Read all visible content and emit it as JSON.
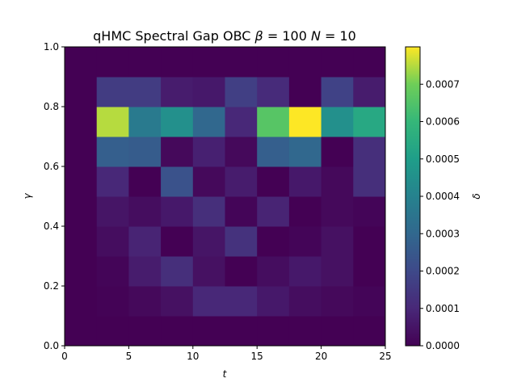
{
  "chart_data": {
    "type": "heatmap",
    "title": "qHMC Spectral Gap  OBC β =  100 N = 10",
    "title_parts": {
      "main": "qHMC Spectral Gap  OBC ",
      "beta_sym": "β",
      "beta_eq": " =  100 ",
      "n_sym": "N",
      "n_eq": " = 10"
    },
    "xlabel": "t",
    "ylabel": "γ",
    "colorbar_label": "δ",
    "xlim": [
      0,
      25
    ],
    "ylim": [
      0,
      1
    ],
    "x_ticks": [
      0,
      5,
      10,
      15,
      20,
      25
    ],
    "y_ticks": [
      0.0,
      0.2,
      0.4,
      0.6,
      0.8,
      1.0
    ],
    "x_tick_labels": [
      "0",
      "5",
      "10",
      "15",
      "20",
      "25"
    ],
    "y_tick_labels": [
      "0.0",
      "0.2",
      "0.4",
      "0.6",
      "0.8",
      "1.0"
    ],
    "clim": [
      0,
      0.0008
    ],
    "colorbar_ticks": [
      0.0,
      0.0001,
      0.0002,
      0.0003,
      0.0004,
      0.0005,
      0.0006,
      0.0007
    ],
    "colorbar_tick_labels": [
      "0.0000",
      "0.0001",
      "0.0002",
      "0.0003",
      "0.0004",
      "0.0005",
      "0.0006",
      "0.0007"
    ],
    "colormap": "viridis",
    "x_edges": [
      0,
      2.5,
      5,
      7.5,
      10,
      12.5,
      15,
      17.5,
      20,
      22.5,
      25
    ],
    "y_edges": [
      0,
      0.1,
      0.2,
      0.3,
      0.4,
      0.5,
      0.6,
      0.7,
      0.8,
      0.9,
      1.0
    ],
    "rows_bottom_to_top": [
      [
        0,
        0,
        0,
        0,
        0,
        0,
        0,
        0,
        0,
        0
      ],
      [
        0,
        5e-06,
        2e-05,
        4e-05,
        0.0001,
        0.0001,
        6e-05,
        3e-05,
        2e-05,
        1e-05
      ],
      [
        0,
        1e-05,
        7e-05,
        0.00012,
        4e-05,
        0.0,
        3e-05,
        6e-05,
        4e-05,
        0.0
      ],
      [
        0,
        3e-05,
        9e-05,
        0.0,
        5e-05,
        0.00013,
        0.0,
        1e-05,
        4e-05,
        0.0
      ],
      [
        0,
        5e-05,
        3e-05,
        6e-05,
        0.00012,
        1e-05,
        9e-05,
        0.0,
        2e-05,
        1e-05
      ],
      [
        0,
        0.0001,
        0.0,
        0.00023,
        2e-05,
        7e-05,
        0.0,
        6e-05,
        2e-05,
        0.00012
      ],
      [
        0,
        0.00027,
        0.00026,
        2e-05,
        8e-05,
        2e-05,
        0.00027,
        0.0003,
        0.0,
        0.00012
      ],
      [
        0,
        0.00075,
        0.00037,
        0.00045,
        0.0003,
        0.0001,
        0.00066,
        0.0008,
        0.00045,
        0.00054
      ],
      [
        0,
        0.00016,
        0.00016,
        7e-05,
        6e-05,
        0.00017,
        0.00011,
        0.0,
        0.00018,
        7e-05
      ],
      [
        0,
        0,
        0,
        0,
        0,
        0,
        0,
        0,
        0,
        0
      ]
    ]
  }
}
